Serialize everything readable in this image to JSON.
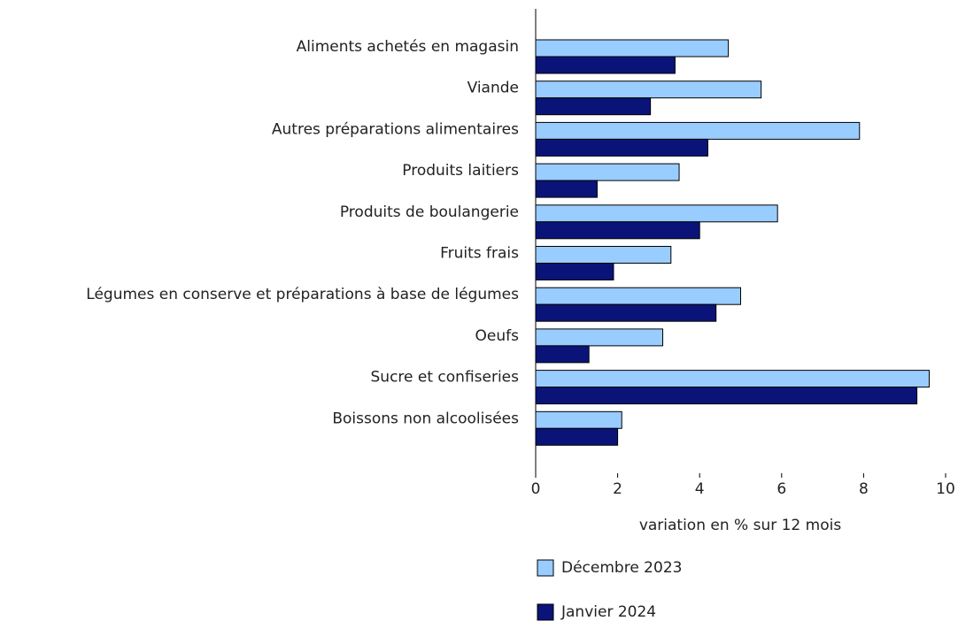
{
  "chart_data": {
    "type": "hbar",
    "categories": [
      "Aliments achetés en magasin",
      "Viande",
      "Autres préparations alimentaires",
      "Produits laitiers",
      "Produits de boulangerie",
      "Fruits frais",
      "Légumes en conserve et préparations à base de légumes",
      "Oeufs",
      "Sucre et confiseries",
      "Boissons non alcoolisées"
    ],
    "series": [
      {
        "name": "Décembre 2023",
        "color": "#99ccff",
        "values": [
          4.7,
          5.5,
          7.9,
          3.5,
          5.9,
          3.3,
          5.0,
          3.1,
          9.6,
          2.1
        ]
      },
      {
        "name": "Janvier 2024",
        "color": "#0a1478",
        "values": [
          3.4,
          2.8,
          4.2,
          1.5,
          4.0,
          1.9,
          4.4,
          1.3,
          9.3,
          2.0
        ]
      }
    ],
    "xlabel": "variation en % sur 12 mois",
    "xlim": [
      0,
      10
    ],
    "xticks": [
      0,
      2,
      4,
      6,
      8,
      10
    ],
    "grid": false
  }
}
